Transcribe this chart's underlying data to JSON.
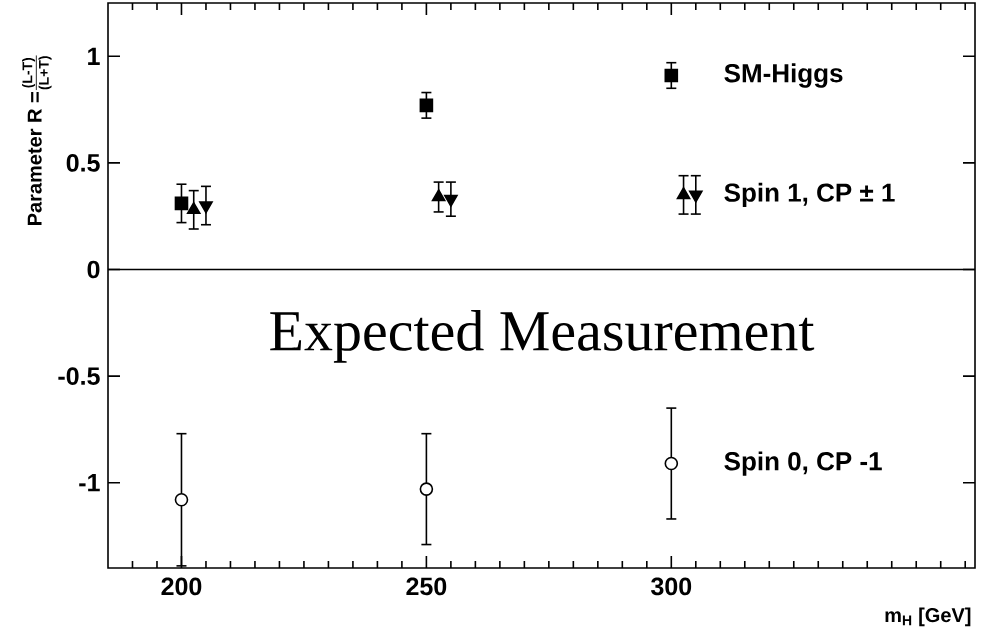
{
  "chart_data": {
    "type": "scatter",
    "xlabel": "m$_{H}$ [GeV]",
    "ylabel": "\\text{Parameter R =} \\frac{\\text{(L-T)}}{\\text{(L+T)}}",
    "xlim": [
      185,
      362
    ],
    "ylim": [
      -1.4,
      1.25
    ],
    "xticks": [
      {
        "value": 190,
        "label": null
      },
      {
        "value": 195,
        "label": null
      },
      200,
      {
        "value": 205,
        "label": null
      },
      {
        "value": 210,
        "label": null
      },
      {
        "value": 215,
        "label": null
      },
      {
        "value": 220,
        "label": null
      },
      {
        "value": 225,
        "label": null
      },
      {
        "value": 230,
        "label": null
      },
      {
        "value": 235,
        "label": null
      },
      {
        "value": 240,
        "label": null
      },
      {
        "value": 245,
        "label": null
      },
      250,
      {
        "value": 255,
        "label": null
      },
      {
        "value": 260,
        "label": null
      },
      {
        "value": 265,
        "label": null
      },
      {
        "value": 270,
        "label": null
      },
      {
        "value": 275,
        "label": null
      },
      {
        "value": 280,
        "label": null
      },
      {
        "value": 285,
        "label": null
      },
      {
        "value": 290,
        "label": null
      },
      {
        "value": 295,
        "label": null
      },
      300,
      {
        "value": 305,
        "label": null
      },
      {
        "value": 310,
        "label": null
      },
      {
        "value": 315,
        "label": null
      },
      {
        "value": 320,
        "label": null
      },
      {
        "value": 325,
        "label": null
      },
      {
        "value": 330,
        "label": null
      },
      {
        "value": 335,
        "label": null
      },
      {
        "value": 340,
        "label": null
      },
      {
        "value": 345,
        "label": null
      },
      {
        "value": 350,
        "label": null
      },
      {
        "value": 355,
        "label": null
      },
      {
        "value": 360,
        "label": null
      }
    ],
    "yticks": [
      -1,
      -0.5,
      0,
      0.5,
      1
    ],
    "series": [
      {
        "name": "SM-Higgs",
        "color": "#000000",
        "marker": "square",
        "x": [
          200,
          250,
          300
        ],
        "values": [
          0.31,
          0.77,
          0.91
        ],
        "errors": [
          0.09,
          0.06,
          0.06
        ]
      },
      {
        "name": "Spin 1, CP ± 1",
        "color": "#000000",
        "marker": "triangle",
        "x": [
          202.5,
          252.5,
          302.5
        ],
        "values": [
          0.28,
          0.34,
          0.35
        ],
        "errors": [
          0.09,
          0.07,
          0.09
        ]
      },
      {
        "color": "#000000",
        "marker": "triangle_down",
        "x": [
          205,
          255,
          305
        ],
        "values": [
          0.3,
          0.33,
          0.35
        ],
        "errors": [
          0.09,
          0.08,
          0.09
        ]
      },
      {
        "name": "Spin 0, CP -1",
        "color": "#000000",
        "marker": "circle",
        "x": [
          200,
          250,
          300
        ],
        "values": [
          -1.08,
          -1.03,
          -0.91
        ],
        "errors": [
          0.31,
          0.26,
          0.26
        ]
      }
    ],
    "ref_lines": [
      {
        "axis": "y",
        "value": 0
      }
    ],
    "annotations": [
      "Expected Measurement"
    ]
  }
}
